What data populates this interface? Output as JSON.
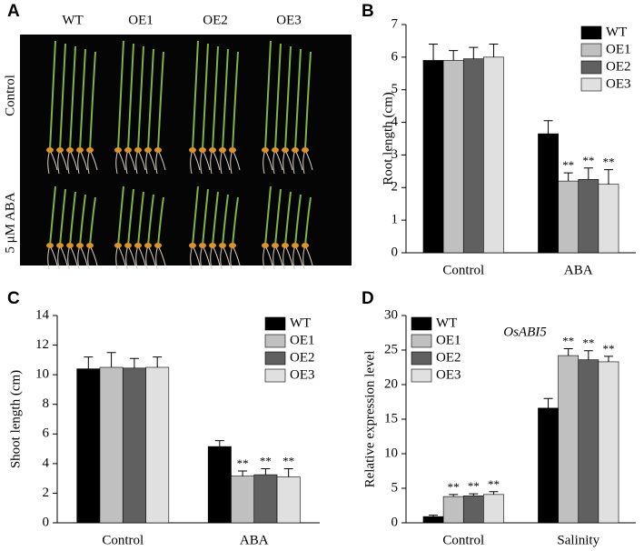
{
  "panel_a": {
    "panel": "A",
    "columns": [
      "WT",
      "OE1",
      "OE2",
      "OE3"
    ],
    "rows": [
      "Control",
      "5 μM ABA"
    ]
  },
  "chart_data": [
    {
      "type": "bar",
      "panel": "B",
      "y_label": "Root length (cm)",
      "categories": [
        "Control",
        "ABA"
      ],
      "ylim": [
        0,
        7
      ],
      "yticks": [
        0,
        1,
        2,
        3,
        4,
        5,
        6,
        7
      ],
      "legend": "top-right",
      "series": [
        {
          "name": "WT",
          "color": "#000000",
          "values": [
            5.9,
            3.65
          ],
          "errors": [
            0.5,
            0.4
          ],
          "significance": [
            null,
            null
          ]
        },
        {
          "name": "OE1",
          "color": "#c0c0c0",
          "values": [
            5.9,
            2.2
          ],
          "errors": [
            0.3,
            0.25
          ],
          "significance": [
            null,
            "**"
          ]
        },
        {
          "name": "OE2",
          "color": "#606060",
          "values": [
            5.95,
            2.25
          ],
          "errors": [
            0.35,
            0.35
          ],
          "significance": [
            null,
            "**"
          ]
        },
        {
          "name": "OE3",
          "color": "#e0e0e0",
          "values": [
            6.0,
            2.1
          ],
          "errors": [
            0.4,
            0.45
          ],
          "significance": [
            null,
            "**"
          ]
        }
      ]
    },
    {
      "type": "bar",
      "panel": "C",
      "y_label": "Shoot length (cm)",
      "categories": [
        "Control",
        "ABA"
      ],
      "ylim": [
        0,
        14
      ],
      "yticks": [
        0,
        2,
        4,
        6,
        8,
        10,
        12,
        14
      ],
      "legend": "top-right",
      "series": [
        {
          "name": "WT",
          "color": "#000000",
          "values": [
            10.4,
            5.15
          ],
          "errors": [
            0.8,
            0.4
          ],
          "significance": [
            null,
            null
          ]
        },
        {
          "name": "OE1",
          "color": "#c0c0c0",
          "values": [
            10.5,
            3.15
          ],
          "errors": [
            1.0,
            0.35
          ],
          "significance": [
            null,
            "**"
          ]
        },
        {
          "name": "OE2",
          "color": "#606060",
          "values": [
            10.45,
            3.25
          ],
          "errors": [
            0.65,
            0.4
          ],
          "significance": [
            null,
            "**"
          ]
        },
        {
          "name": "OE3",
          "color": "#e0e0e0",
          "values": [
            10.5,
            3.1
          ],
          "errors": [
            0.7,
            0.55
          ],
          "significance": [
            null,
            "**"
          ]
        }
      ]
    },
    {
      "type": "bar",
      "panel": "D",
      "y_label": "Relative expression level",
      "annotation": "OsABI5",
      "categories": [
        "Control",
        "Salinity"
      ],
      "ylim": [
        0,
        30
      ],
      "yticks": [
        0,
        5,
        10,
        15,
        20,
        25,
        30
      ],
      "legend": "top-left",
      "series": [
        {
          "name": "WT",
          "color": "#000000",
          "values": [
            0.9,
            16.6
          ],
          "errors": [
            0.2,
            1.4
          ],
          "significance": [
            null,
            null
          ]
        },
        {
          "name": "OE1",
          "color": "#c0c0c0",
          "values": [
            3.8,
            24.2
          ],
          "errors": [
            0.3,
            1.0
          ],
          "significance": [
            "**",
            "**"
          ]
        },
        {
          "name": "OE2",
          "color": "#606060",
          "values": [
            3.9,
            23.6
          ],
          "errors": [
            0.3,
            1.3
          ],
          "significance": [
            "**",
            "**"
          ]
        },
        {
          "name": "OE3",
          "color": "#e0e0e0",
          "values": [
            4.1,
            23.3
          ],
          "errors": [
            0.4,
            0.8
          ],
          "significance": [
            "**",
            "**"
          ]
        }
      ]
    }
  ]
}
